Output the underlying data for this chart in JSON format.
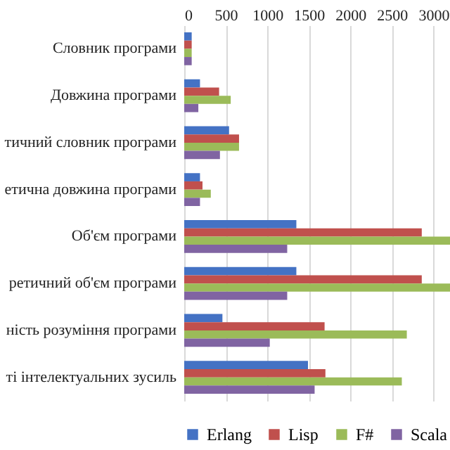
{
  "chart_data": {
    "type": "bar",
    "orientation": "horizontal",
    "categories": [
      "Словник програми",
      "Довжина програми",
      "тичний словник програми",
      "етична довжина програми",
      "Об'єм програми",
      "ретичний об'єм програми",
      "ність розуміння програми",
      "ті інтелектуальних зусиль"
    ],
    "series": [
      {
        "name": "Erlang",
        "color": "#4472c4",
        "values": [
          90,
          190,
          540,
          190,
          1350,
          1350,
          460,
          1490
        ]
      },
      {
        "name": "Lisp",
        "color": "#c0504d",
        "values": [
          90,
          420,
          660,
          220,
          2860,
          2860,
          1690,
          1700
        ]
      },
      {
        "name": "F#",
        "color": "#9bbb59",
        "values": [
          90,
          560,
          660,
          320,
          3200,
          3200,
          2680,
          2620
        ]
      },
      {
        "name": "Scala",
        "color": "#8064a2",
        "values": [
          90,
          170,
          430,
          190,
          1240,
          1240,
          1030,
          1570
        ]
      }
    ],
    "xlim": [
      0,
      3200
    ],
    "xticks": [
      0,
      500,
      1000,
      1500,
      2000,
      2500,
      3000
    ],
    "grid": "x",
    "legend": "bottom"
  }
}
